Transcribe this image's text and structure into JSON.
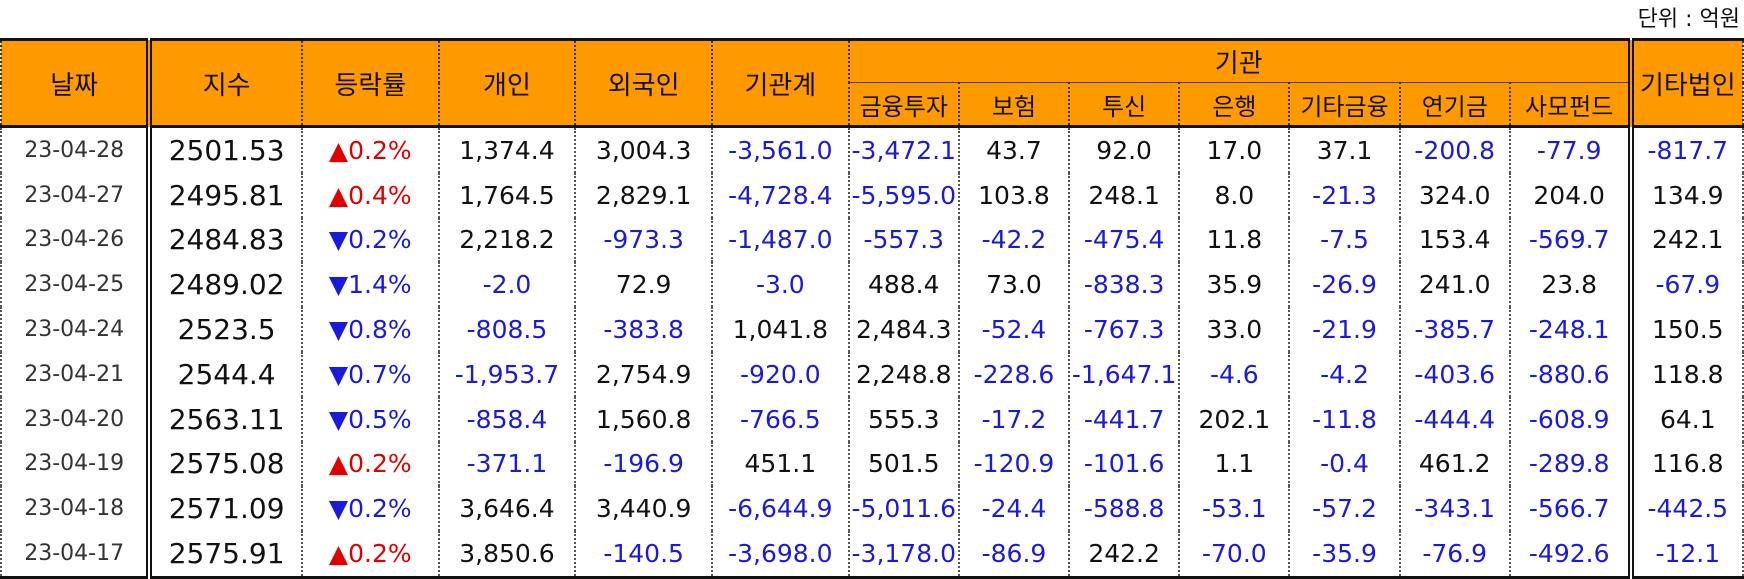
{
  "unit_label": "단위 : 억원",
  "headers": {
    "date": "날짜",
    "index": "지수",
    "change": "등락률",
    "individual": "개인",
    "foreign": "외국인",
    "institution_total": "기관계",
    "institution_group": "기관",
    "inst_sub": [
      "금융투자",
      "보험",
      "투신",
      "은행",
      "기타금융",
      "연기금",
      "사모펀드"
    ],
    "other_corp": "기타법인"
  },
  "colors": {
    "header_bg": "#ff9900",
    "negative": "#1a1adb",
    "up": "#e00000",
    "down": "#1a1adb"
  },
  "rows": [
    {
      "date": "23-04-28",
      "index": "2501.53",
      "dir": "up",
      "arrow": "▲",
      "pct": "0.2%",
      "individual": "1,374.4",
      "foreign": "3,004.3",
      "inst_total": "-3,561.0",
      "fin": "-3,472.1",
      "ins": "43.7",
      "trust": "92.0",
      "bank": "17.0",
      "etc_fin": "37.1",
      "pension": "-200.8",
      "pef": "-77.9",
      "other": "-817.7"
    },
    {
      "date": "23-04-27",
      "index": "2495.81",
      "dir": "up",
      "arrow": "▲",
      "pct": "0.4%",
      "individual": "1,764.5",
      "foreign": "2,829.1",
      "inst_total": "-4,728.4",
      "fin": "-5,595.0",
      "ins": "103.8",
      "trust": "248.1",
      "bank": "8.0",
      "etc_fin": "-21.3",
      "pension": "324.0",
      "pef": "204.0",
      "other": "134.9"
    },
    {
      "date": "23-04-26",
      "index": "2484.83",
      "dir": "down",
      "arrow": "▼",
      "pct": "0.2%",
      "individual": "2,218.2",
      "foreign": "-973.3",
      "inst_total": "-1,487.0",
      "fin": "-557.3",
      "ins": "-42.2",
      "trust": "-475.4",
      "bank": "11.8",
      "etc_fin": "-7.5",
      "pension": "153.4",
      "pef": "-569.7",
      "other": "242.1"
    },
    {
      "date": "23-04-25",
      "index": "2489.02",
      "dir": "down",
      "arrow": "▼",
      "pct": "1.4%",
      "individual": "-2.0",
      "foreign": "72.9",
      "inst_total": "-3.0",
      "fin": "488.4",
      "ins": "73.0",
      "trust": "-838.3",
      "bank": "35.9",
      "etc_fin": "-26.9",
      "pension": "241.0",
      "pef": "23.8",
      "other": "-67.9"
    },
    {
      "date": "23-04-24",
      "index": "2523.5",
      "dir": "down",
      "arrow": "▼",
      "pct": "0.8%",
      "individual": "-808.5",
      "foreign": "-383.8",
      "inst_total": "1,041.8",
      "fin": "2,484.3",
      "ins": "-52.4",
      "trust": "-767.3",
      "bank": "33.0",
      "etc_fin": "-21.9",
      "pension": "-385.7",
      "pef": "-248.1",
      "other": "150.5"
    },
    {
      "date": "23-04-21",
      "index": "2544.4",
      "dir": "down",
      "arrow": "▼",
      "pct": "0.7%",
      "individual": "-1,953.7",
      "foreign": "2,754.9",
      "inst_total": "-920.0",
      "fin": "2,248.8",
      "ins": "-228.6",
      "trust": "-1,647.1",
      "bank": "-4.6",
      "etc_fin": "-4.2",
      "pension": "-403.6",
      "pef": "-880.6",
      "other": "118.8"
    },
    {
      "date": "23-04-20",
      "index": "2563.11",
      "dir": "down",
      "arrow": "▼",
      "pct": "0.5%",
      "individual": "-858.4",
      "foreign": "1,560.8",
      "inst_total": "-766.5",
      "fin": "555.3",
      "ins": "-17.2",
      "trust": "-441.7",
      "bank": "202.1",
      "etc_fin": "-11.8",
      "pension": "-444.4",
      "pef": "-608.9",
      "other": "64.1"
    },
    {
      "date": "23-04-19",
      "index": "2575.08",
      "dir": "up",
      "arrow": "▲",
      "pct": "0.2%",
      "individual": "-371.1",
      "foreign": "-196.9",
      "inst_total": "451.1",
      "fin": "501.5",
      "ins": "-120.9",
      "trust": "-101.6",
      "bank": "1.1",
      "etc_fin": "-0.4",
      "pension": "461.2",
      "pef": "-289.8",
      "other": "116.8"
    },
    {
      "date": "23-04-18",
      "index": "2571.09",
      "dir": "down",
      "arrow": "▼",
      "pct": "0.2%",
      "individual": "3,646.4",
      "foreign": "3,440.9",
      "inst_total": "-6,644.9",
      "fin": "-5,011.6",
      "ins": "-24.4",
      "trust": "-588.8",
      "bank": "-53.1",
      "etc_fin": "-57.2",
      "pension": "-343.1",
      "pef": "-566.7",
      "other": "-442.5"
    },
    {
      "date": "23-04-17",
      "index": "2575.91",
      "dir": "up",
      "arrow": "▲",
      "pct": "0.2%",
      "individual": "3,850.6",
      "foreign": "-140.5",
      "inst_total": "-3,698.0",
      "fin": "-3,178.0",
      "ins": "-86.9",
      "trust": "242.2",
      "bank": "-70.0",
      "etc_fin": "-35.9",
      "pension": "-76.9",
      "pef": "-492.6",
      "other": "-12.1"
    }
  ]
}
